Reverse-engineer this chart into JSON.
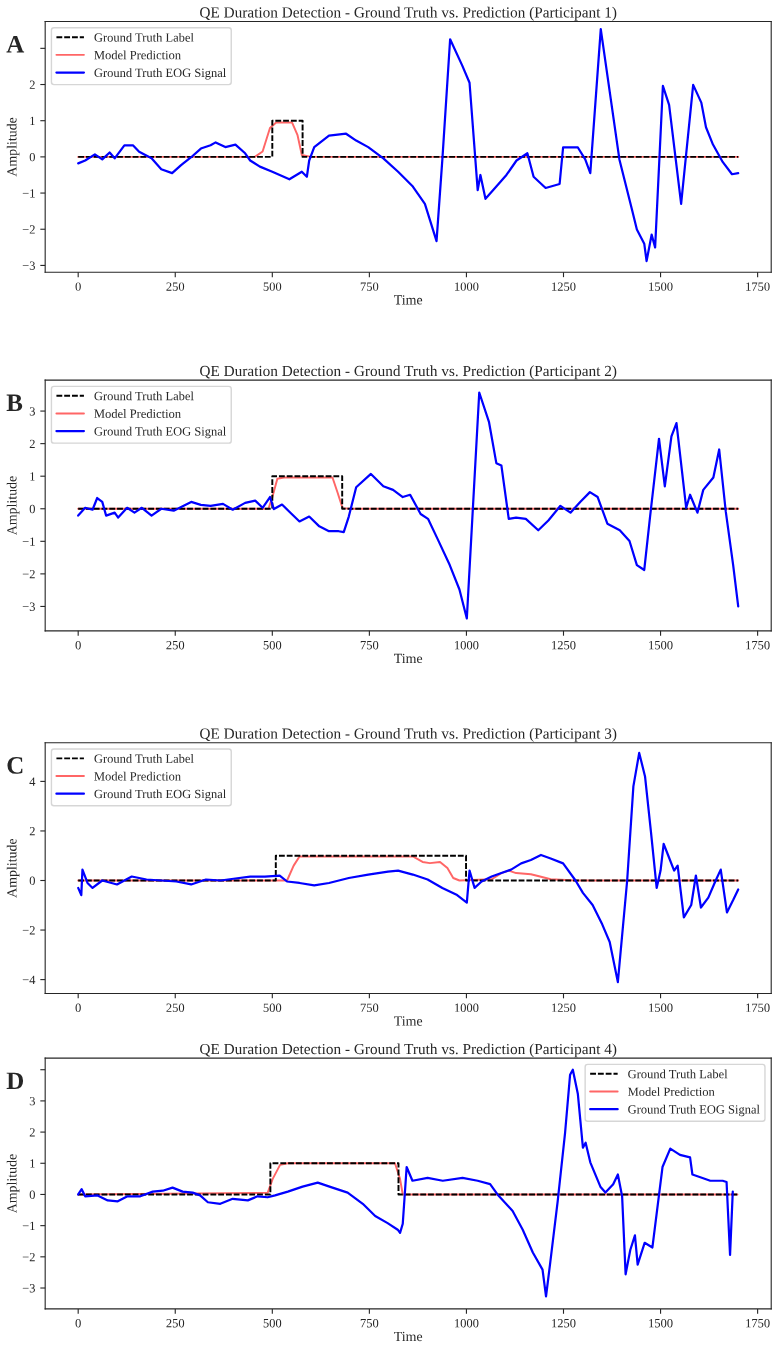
{
  "chart_data": [
    {
      "type": "line",
      "title": "QE Duration Detection - Ground Truth vs. Prediction (Participant 1)",
      "xlabel": "Time",
      "ylabel": "Amplitude",
      "annotations": [
        "A"
      ],
      "legend": "top left",
      "xlim": [
        -85,
        1785
      ],
      "xticks": [
        0,
        250,
        500,
        750,
        1000,
        1250,
        1500,
        1750
      ],
      "ylim": [
        -3.19,
        3.74
      ],
      "yticks": [
        -3,
        -2,
        -1,
        0,
        1,
        2,
        {
          "value": 3,
          "label": null
        }
      ],
      "series": [
        {
          "name": "Ground Truth Label",
          "color": "#000000",
          "line_style": "dashed",
          "x": [
            0,
            500,
            500,
            578,
            578,
            1700
          ],
          "values": [
            0,
            0,
            1,
            1,
            0,
            0
          ]
        },
        {
          "name": "Model Prediction",
          "color": "#ff6666",
          "line_style": "solid",
          "x": [
            0,
            455,
            475,
            494,
            510,
            551,
            565,
            576,
            600,
            1700
          ],
          "values": [
            0,
            0,
            0.15,
            0.8,
            0.95,
            0.95,
            0.6,
            0.05,
            0,
            0
          ]
        },
        {
          "name": "Ground Truth EOG Signal",
          "color": "#0000ff",
          "line_style": "solid",
          "x": [
            0,
            18,
            43,
            62,
            81,
            94,
            119,
            141,
            157,
            189,
            214,
            242,
            265,
            291,
            316,
            341,
            354,
            379,
            405,
            430,
            443,
            468,
            500,
            544,
            576,
            589,
            595,
            608,
            646,
            690,
            716,
            747,
            786,
            824,
            862,
            893,
            923,
            938,
            958,
            989,
            1008,
            1029,
            1036,
            1049,
            1077,
            1103,
            1129,
            1157,
            1173,
            1204,
            1240,
            1249,
            1287,
            1306,
            1319,
            1346,
            1394,
            1426,
            1439,
            1458,
            1464,
            1477,
            1486,
            1506,
            1522,
            1553,
            1584,
            1605,
            1617,
            1635,
            1660,
            1684,
            1700
          ],
          "values": [
            -0.18,
            -0.1,
            0.07,
            -0.07,
            0.12,
            -0.04,
            0.32,
            0.32,
            0.14,
            -0.04,
            -0.34,
            -0.45,
            -0.23,
            -0.01,
            0.23,
            0.32,
            0.4,
            0.27,
            0.34,
            0.1,
            -0.1,
            -0.27,
            -0.41,
            -0.62,
            -0.41,
            -0.55,
            -0.1,
            0.27,
            0.59,
            0.64,
            0.45,
            0.27,
            -0.04,
            -0.41,
            -0.82,
            -1.3,
            -2.33,
            -0.07,
            3.25,
            2.53,
            2.05,
            -0.92,
            -0.5,
            -1.16,
            -0.82,
            -0.5,
            -0.1,
            0.1,
            -0.55,
            -0.86,
            -0.75,
            0.26,
            0.26,
            -0.07,
            -0.45,
            3.53,
            -0.07,
            -1.44,
            -2.01,
            -2.4,
            -2.88,
            -2.15,
            -2.5,
            1.96,
            1.44,
            -1.3,
            1.99,
            1.5,
            0.82,
            0.34,
            -0.14,
            -0.48,
            -0.45
          ]
        }
      ]
    },
    {
      "type": "line",
      "title": "QE Duration Detection - Ground Truth vs. Prediction (Participant 2)",
      "xlabel": "Time",
      "ylabel": "Amplitude",
      "annotations": [
        "B"
      ],
      "legend": "top left",
      "xlim": [
        -85,
        1785
      ],
      "xticks": [
        0,
        250,
        500,
        750,
        1000,
        1250,
        1500,
        1750
      ],
      "ylim": [
        -3.75,
        3.95
      ],
      "yticks": [
        -3,
        -2,
        -1,
        0,
        1,
        2,
        3
      ],
      "series": [
        {
          "name": "Ground Truth Label",
          "color": "#000000",
          "line_style": "dashed",
          "x": [
            0,
            500,
            500,
            680,
            680,
            1700
          ],
          "values": [
            0,
            0,
            1,
            1,
            0,
            0
          ]
        },
        {
          "name": "Model Prediction",
          "color": "#ff6666",
          "line_style": "solid",
          "x": [
            0,
            490,
            500,
            513,
            530,
            655,
            668,
            681,
            700,
            1700
          ],
          "values": [
            0,
            0,
            0.35,
            0.92,
            0.96,
            0.96,
            0.5,
            0.02,
            0,
            0
          ]
        },
        {
          "name": "Ground Truth EOG Signal",
          "color": "#0000ff",
          "line_style": "solid",
          "x": [
            0,
            18,
            37,
            49,
            62,
            72,
            94,
            103,
            126,
            145,
            164,
            189,
            214,
            246,
            291,
            316,
            341,
            373,
            398,
            430,
            456,
            475,
            494,
            504,
            525,
            544,
            570,
            595,
            621,
            646,
            671,
            684,
            697,
            716,
            754,
            786,
            811,
            836,
            855,
            882,
            901,
            925,
            957,
            982,
            1001,
            1033,
            1058,
            1077,
            1090,
            1109,
            1128,
            1153,
            1185,
            1211,
            1242,
            1268,
            1293,
            1318,
            1338,
            1363,
            1395,
            1420,
            1439,
            1458,
            1473,
            1496,
            1511,
            1528,
            1541,
            1566,
            1576,
            1595,
            1610,
            1636,
            1651,
            1668,
            1687,
            1700
          ],
          "values": [
            -0.21,
            0.03,
            -0.03,
            0.33,
            0.21,
            -0.21,
            -0.12,
            -0.27,
            0.03,
            -0.12,
            0.03,
            -0.21,
            0,
            -0.06,
            0.21,
            0.12,
            0.09,
            0.15,
            -0.03,
            0.18,
            0.25,
            0.03,
            0.36,
            -0.01,
            0.13,
            -0.09,
            -0.39,
            -0.24,
            -0.54,
            -0.69,
            -0.69,
            -0.72,
            -0.24,
            0.66,
            1.07,
            0.69,
            0.58,
            0.36,
            0.43,
            -0.16,
            -0.31,
            -0.91,
            -1.73,
            -2.48,
            -3.37,
            3.57,
            2.67,
            1.4,
            1.33,
            -0.31,
            -0.27,
            -0.31,
            -0.66,
            -0.36,
            0.09,
            -0.12,
            0.21,
            0.51,
            0.36,
            -0.46,
            -0.66,
            -0.99,
            -1.73,
            -1.88,
            -0.24,
            2.15,
            0.69,
            2.22,
            2.63,
            0.03,
            0.43,
            -0.12,
            0.58,
            0.96,
            1.82,
            -0.09,
            -1.73,
            -3.0
          ]
        }
      ]
    },
    {
      "type": "line",
      "title": "QE Duration Detection - Ground Truth vs. Prediction (Participant 3)",
      "xlabel": "Time",
      "ylabel": "Amplitude",
      "annotations": [
        "C"
      ],
      "legend": "top left",
      "xlim": [
        -85,
        1785
      ],
      "xticks": [
        0,
        250,
        500,
        750,
        1000,
        1250,
        1500,
        1750
      ],
      "ylim": [
        -4.56,
        5.56
      ],
      "yticks": [
        -4,
        -2,
        0,
        2,
        4
      ],
      "series": [
        {
          "name": "Ground Truth Label",
          "color": "#000000",
          "line_style": "dashed",
          "x": [
            0,
            509,
            509,
            999,
            999,
            1700
          ],
          "values": [
            0,
            0,
            1,
            1,
            0,
            0
          ]
        },
        {
          "name": "Model Prediction",
          "color": "#ff6666",
          "line_style": "solid",
          "x": [
            0,
            538,
            555,
            570,
            862,
            887,
            906,
            932,
            951,
            966,
            982,
            1065,
            1090,
            1109,
            1128,
            1166,
            1192,
            1217,
            1281,
            1700
          ],
          "values": [
            0,
            0,
            0.6,
            0.97,
            0.97,
            0.75,
            0.7,
            0.75,
            0.5,
            0.1,
            0,
            0.05,
            0.3,
            0.4,
            0.3,
            0.25,
            0.15,
            0.05,
            0,
            0
          ]
        },
        {
          "name": "Ground Truth EOG Signal",
          "color": "#0000ff",
          "line_style": "solid",
          "x": [
            0,
            8,
            11,
            24,
            37,
            62,
            100,
            138,
            176,
            214,
            253,
            291,
            329,
            367,
            405,
            443,
            481,
            519,
            538,
            570,
            608,
            646,
            697,
            747,
            798,
            824,
            862,
            900,
            938,
            976,
            1001,
            1008,
            1021,
            1039,
            1065,
            1090,
            1115,
            1141,
            1166,
            1192,
            1217,
            1249,
            1281,
            1300,
            1325,
            1350,
            1369,
            1390,
            1414,
            1430,
            1445,
            1460,
            1475,
            1490,
            1500,
            1508,
            1520,
            1535,
            1544,
            1560,
            1579,
            1591,
            1604,
            1623,
            1642,
            1655,
            1671,
            1687,
            1700
          ],
          "values": [
            -0.3,
            -0.59,
            0.44,
            -0.1,
            -0.3,
            0,
            -0.16,
            0.16,
            0.04,
            0,
            -0.04,
            -0.16,
            0.04,
            0,
            0.08,
            0.16,
            0.16,
            0.2,
            -0.04,
            -0.1,
            -0.2,
            -0.1,
            0.1,
            0.24,
            0.36,
            0.4,
            0.24,
            0.04,
            -0.3,
            -0.59,
            -0.89,
            0.4,
            -0.3,
            -0.04,
            0.16,
            0.3,
            0.44,
            0.69,
            0.83,
            1.03,
            0.89,
            0.69,
            0,
            -0.5,
            -0.99,
            -1.78,
            -2.48,
            -4.1,
            0,
            3.8,
            5.15,
            4.2,
            2.0,
            -0.3,
            0.4,
            1.48,
            1.0,
            0.4,
            0.6,
            -1.49,
            -0.99,
            0.2,
            -1.09,
            -0.69,
            0,
            0.44,
            -1.29,
            -0.79,
            -0.36
          ]
        }
      ]
    },
    {
      "type": "line",
      "title": "QE Duration Detection - Ground Truth vs. Prediction (Participant 4)",
      "xlabel": "Time",
      "ylabel": "Amplitude",
      "annotations": [
        "D"
      ],
      "legend": "top right",
      "xlim": [
        -85,
        1785
      ],
      "xticks": [
        0,
        250,
        500,
        750,
        1000,
        1250,
        1500,
        1750
      ],
      "ylim": [
        -3.67,
        4.37
      ],
      "yticks": [
        -3,
        -2,
        -1,
        0,
        1,
        2,
        3,
        {
          "value": 4,
          "label": null
        }
      ],
      "series": [
        {
          "name": "Ground Truth Label",
          "color": "#000000",
          "line_style": "dashed",
          "x": [
            0,
            495,
            495,
            825,
            825,
            1698
          ],
          "values": [
            0,
            0,
            1,
            1,
            0,
            0
          ]
        },
        {
          "name": "Model Prediction",
          "color": "#ff6666",
          "line_style": "solid",
          "x": [
            0,
            488,
            501,
            520,
            540,
            816,
            829,
            836,
            860,
            1698
          ],
          "values": [
            0,
            0.05,
            0.5,
            0.95,
            1,
            1,
            0.5,
            0,
            0,
            0
          ]
        },
        {
          "name": "Ground Truth EOG Signal",
          "color": "#0000ff",
          "line_style": "solid",
          "x": [
            0,
            9,
            18,
            50,
            76,
            102,
            127,
            160,
            192,
            218,
            243,
            269,
            295,
            314,
            334,
            366,
            398,
            437,
            462,
            488,
            507,
            540,
            578,
            617,
            655,
            694,
            733,
            765,
            797,
            823,
            829,
            836,
            846,
            861,
            900,
            939,
            990,
            1029,
            1061,
            1080,
            1119,
            1145,
            1171,
            1196,
            1205,
            1216,
            1235,
            1254,
            1267,
            1274,
            1287,
            1300,
            1307,
            1319,
            1345,
            1358,
            1378,
            1390,
            1401,
            1410,
            1422,
            1434,
            1441,
            1459,
            1479,
            1505,
            1525,
            1550,
            1576,
            1582,
            1608,
            1628,
            1660,
            1670,
            1679,
            1686
          ],
          "values": [
            0,
            0.17,
            -0.06,
            -0.03,
            -0.19,
            -0.22,
            -0.06,
            -0.06,
            0.09,
            0.12,
            0.22,
            0.09,
            0.06,
            -0.03,
            -0.25,
            -0.3,
            -0.14,
            -0.19,
            -0.06,
            -0.09,
            -0.03,
            0.09,
            0.25,
            0.38,
            0.22,
            0.06,
            -0.3,
            -0.69,
            -0.92,
            -1.13,
            -1.23,
            -0.94,
            0.88,
            0.44,
            0.53,
            0.44,
            0.53,
            0.44,
            0.33,
            0,
            -0.53,
            -1.13,
            -1.86,
            -2.41,
            -3.27,
            -2.17,
            -0.22,
            1.97,
            3.84,
            4.0,
            3.22,
            1.5,
            1.66,
            1.03,
            0.25,
            0.06,
            0.33,
            0.64,
            -0.06,
            -2.56,
            -1.78,
            -1.31,
            -2.25,
            -1.55,
            -1.7,
            0.88,
            1.47,
            1.27,
            1.19,
            0.64,
            0.53,
            0.44,
            0.44,
            0.4,
            -1.94,
            0.09
          ]
        }
      ]
    }
  ]
}
